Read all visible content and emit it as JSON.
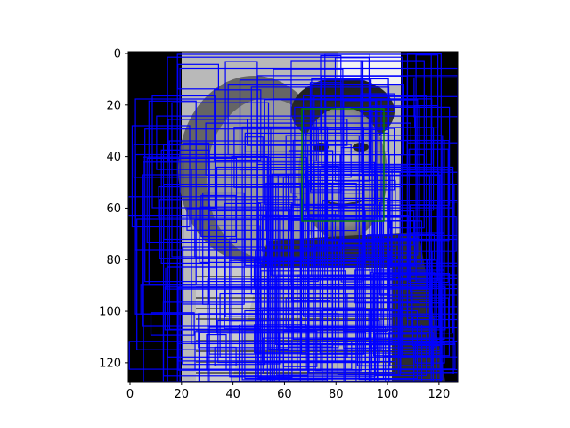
{
  "figure": {
    "x_ticks": [
      "0",
      "20",
      "40",
      "60",
      "80",
      "100",
      "120"
    ],
    "y_ticks": [
      "0",
      "20",
      "40",
      "60",
      "80",
      "100",
      "120"
    ]
  },
  "colors": {
    "box_primary": "#0000ff",
    "box_highlight": "#008000",
    "image_background": "#000000",
    "light_gray": "#b8b8b8"
  },
  "icons": [
    "grayscale-portrait-image"
  ]
}
